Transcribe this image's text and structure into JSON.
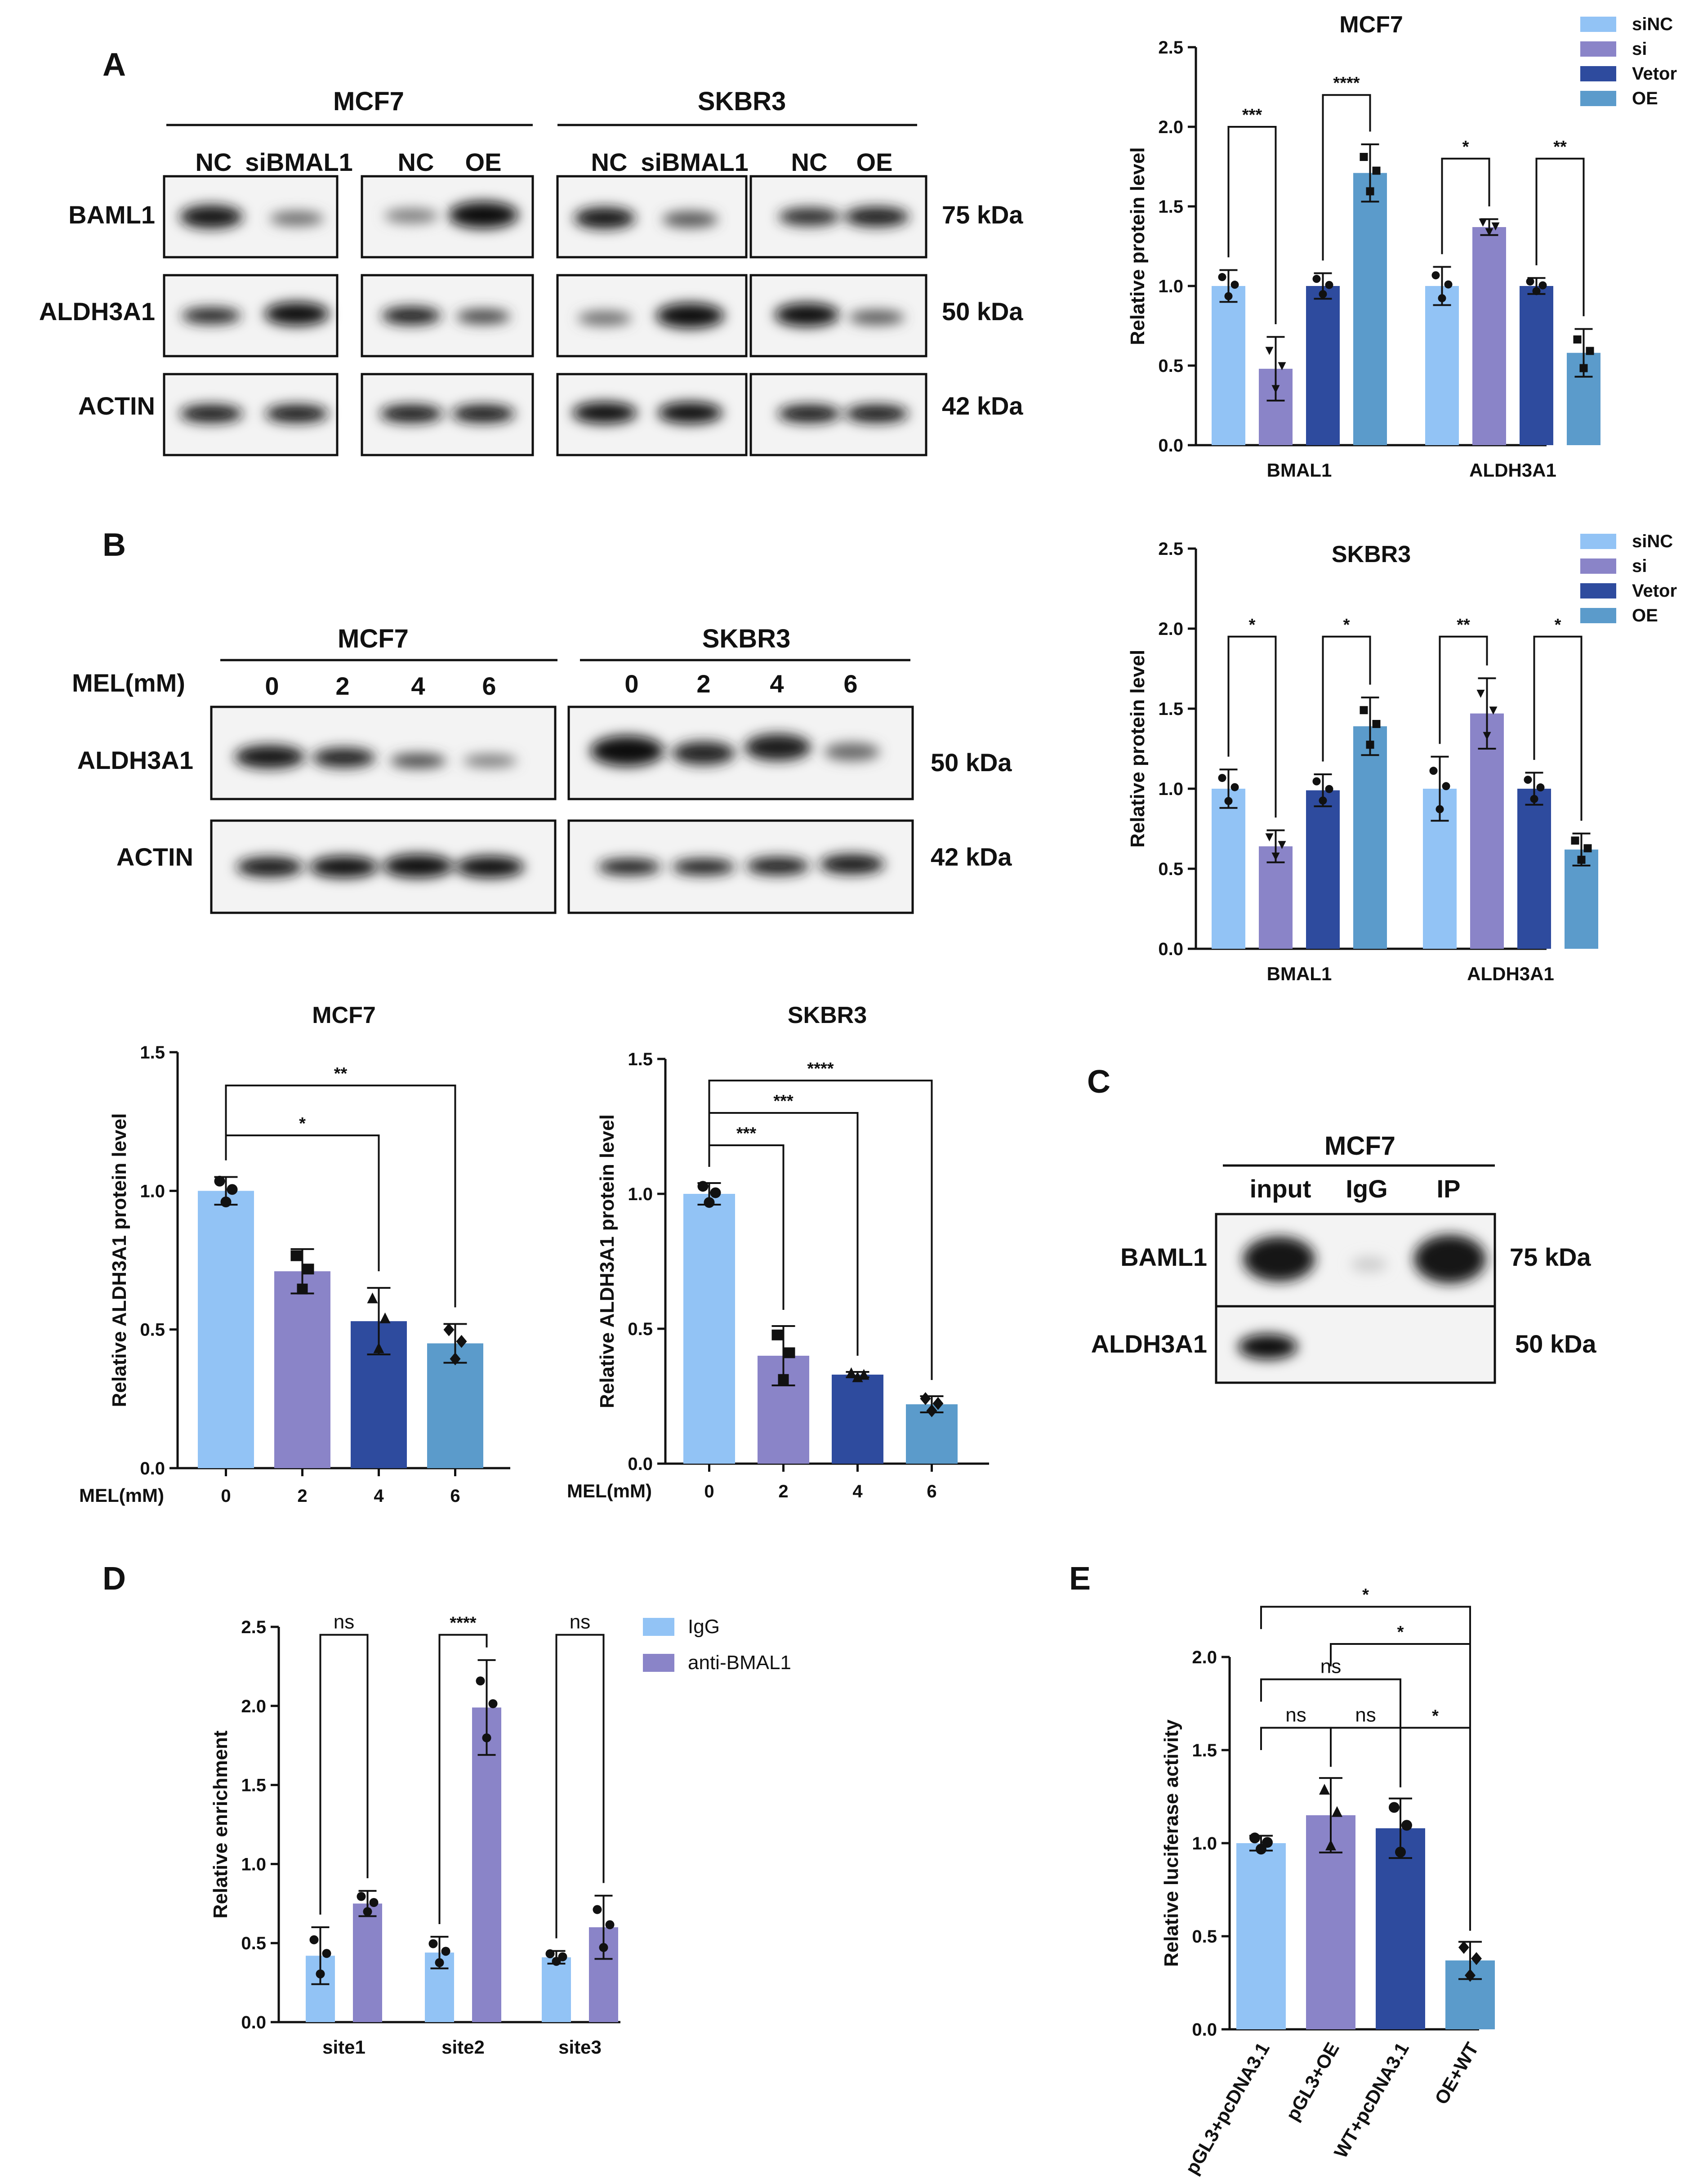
{
  "panels": {
    "A": "A",
    "B": "B",
    "C": "C",
    "D": "D",
    "E": "E"
  },
  "blotA": {
    "groups": [
      "MCF7",
      "SKBR3"
    ],
    "lanes": [
      "NC",
      "siBMAL1",
      "NC",
      "OE",
      "NC",
      "siBMAL1",
      "NC",
      "OE"
    ],
    "rows": [
      "BAML1",
      "ALDH3A1",
      "ACTIN"
    ],
    "kda": [
      "75 kDa",
      "50 kDa",
      "42 kDa"
    ]
  },
  "blotB": {
    "groups": [
      "MCF7",
      "SKBR3"
    ],
    "lane_header": "MEL(mM)",
    "lanes": [
      "0",
      "2",
      "4",
      "6",
      "0",
      "2",
      "4",
      "6"
    ],
    "rows": [
      "ALDH3A1",
      "ACTIN"
    ],
    "kda": [
      "50 kDa",
      "42 kDa"
    ]
  },
  "blotC": {
    "group": "MCF7",
    "lanes": [
      "input",
      "IgG",
      "IP"
    ],
    "rows": [
      "BAML1",
      "ALDH3A1"
    ],
    "kda": [
      "75 kDa",
      "50 kDa"
    ]
  },
  "colors": {
    "lightblue": "#92C3F5",
    "purple": "#8A84C8",
    "navy": "#2E4B9E",
    "steel": "#5B9BCB"
  },
  "chart_data": [
    {
      "id": "A-right",
      "type": "bar",
      "title": "MCF7",
      "ylabel": "Relative protein level",
      "ylim": [
        0,
        2.5
      ],
      "yticks": [
        "0.0",
        "0.5",
        "1.0",
        "1.5",
        "2.0",
        "2.5"
      ],
      "categories": [
        "BMAL1",
        "ALDH3A1"
      ],
      "legend": [
        "siNC",
        "si",
        "Vetor",
        "OE"
      ],
      "legend_position": "top-right",
      "series": [
        {
          "name": "siNC",
          "values": [
            1.0,
            1.0
          ],
          "err": [
            0.1,
            0.12
          ]
        },
        {
          "name": "si",
          "values": [
            0.48,
            1.37
          ],
          "err": [
            0.2,
            0.05
          ]
        },
        {
          "name": "Vetor",
          "values": [
            1.0,
            1.0
          ],
          "err": [
            0.08,
            0.05
          ]
        },
        {
          "name": "OE",
          "values": [
            1.71,
            0.58
          ],
          "err": [
            0.18,
            0.15
          ]
        }
      ],
      "significance": [
        {
          "label": "***",
          "group": 0,
          "pair": [
            0,
            1
          ],
          "y": 2.0
        },
        {
          "label": "****",
          "group": 0,
          "pair": [
            2,
            3
          ],
          "y": 2.2
        },
        {
          "label": "*",
          "group": 1,
          "pair": [
            0,
            1
          ],
          "y": 1.8
        },
        {
          "label": "**",
          "group": 1,
          "pair": [
            2,
            3
          ],
          "y": 1.8
        }
      ]
    },
    {
      "id": "B-right",
      "type": "bar",
      "title": "SKBR3",
      "ylabel": "Relative protein level",
      "ylim": [
        0,
        2.5
      ],
      "yticks": [
        "0.0",
        "0.5",
        "1.0",
        "1.5",
        "2.0",
        "2.5"
      ],
      "categories": [
        "BMAL1",
        "ALDH3A1"
      ],
      "legend": [
        "siNC",
        "si",
        "Vetor",
        "OE"
      ],
      "legend_position": "top-right",
      "series": [
        {
          "name": "siNC",
          "values": [
            1.0,
            1.0
          ],
          "err": [
            0.12,
            0.2
          ]
        },
        {
          "name": "si",
          "values": [
            0.64,
            1.47
          ],
          "err": [
            0.1,
            0.22
          ]
        },
        {
          "name": "Vetor",
          "values": [
            0.99,
            1.0
          ],
          "err": [
            0.1,
            0.1
          ]
        },
        {
          "name": "OE",
          "values": [
            1.39,
            0.62
          ],
          "err": [
            0.18,
            0.1
          ]
        }
      ],
      "significance": [
        {
          "label": "*",
          "group": 0,
          "pair": [
            0,
            1
          ],
          "y": 1.95
        },
        {
          "label": "*",
          "group": 0,
          "pair": [
            2,
            3
          ],
          "y": 1.95
        },
        {
          "label": "**",
          "group": 1,
          "pair": [
            0,
            1
          ],
          "y": 1.95
        },
        {
          "label": "*",
          "group": 1,
          "pair": [
            2,
            3
          ],
          "y": 1.95
        }
      ]
    },
    {
      "id": "B-mcf7",
      "type": "bar",
      "title": "MCF7",
      "ylabel": "Relative ALDH3A1 protein level",
      "xlabel": "MEL(mM)",
      "ylim": [
        0,
        1.5
      ],
      "yticks": [
        "0.0",
        "0.5",
        "1.0",
        "1.5"
      ],
      "categories": [
        "0",
        "2",
        "4",
        "6"
      ],
      "values": [
        1.0,
        0.71,
        0.53,
        0.45
      ],
      "err": [
        0.05,
        0.08,
        0.12,
        0.07
      ],
      "significance": [
        {
          "label": "*",
          "pair": [
            0,
            2
          ],
          "y": 1.2
        },
        {
          "label": "**",
          "pair": [
            0,
            3
          ],
          "y": 1.38
        }
      ]
    },
    {
      "id": "B-skbr3",
      "type": "bar",
      "title": "SKBR3",
      "ylabel": "Relative ALDH3A1 protein level",
      "xlabel": "MEL(mM)",
      "ylim": [
        0,
        1.5
      ],
      "yticks": [
        "0.0",
        "0.5",
        "1.0",
        "1.5"
      ],
      "categories": [
        "0",
        "2",
        "4",
        "6"
      ],
      "values": [
        1.0,
        0.4,
        0.33,
        0.22
      ],
      "err": [
        0.04,
        0.11,
        0.01,
        0.03
      ],
      "significance": [
        {
          "label": "***",
          "pair": [
            0,
            1
          ],
          "y": 1.18
        },
        {
          "label": "***",
          "pair": [
            0,
            2
          ],
          "y": 1.3
        },
        {
          "label": "****",
          "pair": [
            0,
            3
          ],
          "y": 1.42
        }
      ]
    },
    {
      "id": "D",
      "type": "bar",
      "ylabel": "Relative enrichment",
      "ylim": [
        0,
        2.5
      ],
      "yticks": [
        "0.0",
        "0.5",
        "1.0",
        "1.5",
        "2.0",
        "2.5"
      ],
      "categories": [
        "site1",
        "site2",
        "site3"
      ],
      "legend": [
        "IgG",
        "anti-BMAL1"
      ],
      "legend_position": "top-right",
      "series": [
        {
          "name": "IgG",
          "values": [
            0.42,
            0.44,
            0.41
          ],
          "err": [
            0.18,
            0.1,
            0.04
          ]
        },
        {
          "name": "anti-BMAL1",
          "values": [
            0.75,
            1.99,
            0.6
          ],
          "err": [
            0.08,
            0.3,
            0.2
          ]
        }
      ],
      "significance": [
        {
          "label": "ns",
          "group": 0,
          "y": 2.45
        },
        {
          "label": "****",
          "group": 1,
          "y": 2.45
        },
        {
          "label": "ns",
          "group": 2,
          "y": 2.45
        }
      ]
    },
    {
      "id": "E",
      "type": "bar",
      "ylabel": "Relative luciferase activity",
      "ylim": [
        0,
        2.0
      ],
      "yticks": [
        "0.0",
        "0.5",
        "1.0",
        "1.5",
        "2.0"
      ],
      "categories": [
        "pGL3+pcDNA3.1",
        "pGL3+OE",
        "WT+pcDNA3.1",
        "OE+WT"
      ],
      "values": [
        1.0,
        1.15,
        1.08,
        0.37
      ],
      "err": [
        0.04,
        0.2,
        0.16,
        0.1
      ],
      "significance": [
        {
          "label": "ns",
          "pair": [
            0,
            1
          ],
          "y": 1.62
        },
        {
          "label": "ns",
          "pair": [
            1,
            2
          ],
          "y": 1.62
        },
        {
          "label": "*",
          "pair": [
            2,
            3
          ],
          "y": 1.62
        },
        {
          "label": "ns",
          "pair": [
            0,
            2
          ],
          "y": 1.88
        },
        {
          "label": "*",
          "pair": [
            1,
            3
          ],
          "y": 2.07
        },
        {
          "label": "*",
          "pair": [
            0,
            3
          ],
          "y": 2.27
        }
      ]
    }
  ]
}
